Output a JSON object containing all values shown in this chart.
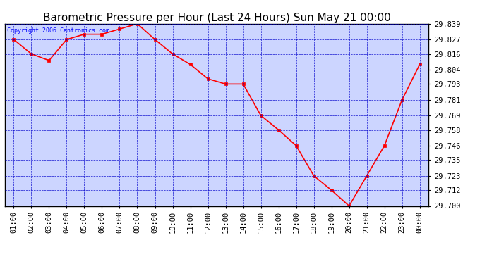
{
  "title": "Barometric Pressure per Hour (Last 24 Hours) Sun May 21 00:00",
  "copyright": "Copyright 2006 Cantronics.com",
  "x_labels": [
    "01:00",
    "02:00",
    "03:00",
    "04:00",
    "05:00",
    "06:00",
    "07:00",
    "08:00",
    "09:00",
    "10:00",
    "11:00",
    "12:00",
    "13:00",
    "14:00",
    "15:00",
    "16:00",
    "17:00",
    "18:00",
    "19:00",
    "20:00",
    "21:00",
    "22:00",
    "23:00",
    "00:00"
  ],
  "y_values": [
    29.827,
    29.816,
    29.811,
    29.827,
    29.831,
    29.831,
    29.835,
    29.839,
    29.827,
    29.816,
    29.808,
    29.797,
    29.793,
    29.793,
    29.769,
    29.758,
    29.746,
    29.723,
    29.712,
    29.7,
    29.723,
    29.746,
    29.781,
    29.808
  ],
  "line_color": "red",
  "marker": "s",
  "marker_size": 3,
  "bg_color": "#ccd5ff",
  "fig_bg": "#ffffff",
  "grid_color": "#0000cc",
  "ylim_min": 29.7,
  "ylim_max": 29.839,
  "yticks": [
    29.7,
    29.712,
    29.723,
    29.735,
    29.746,
    29.758,
    29.769,
    29.781,
    29.793,
    29.804,
    29.816,
    29.827,
    29.839
  ],
  "title_fontsize": 11,
  "tick_fontsize": 7.5,
  "copyright_fontsize": 6
}
